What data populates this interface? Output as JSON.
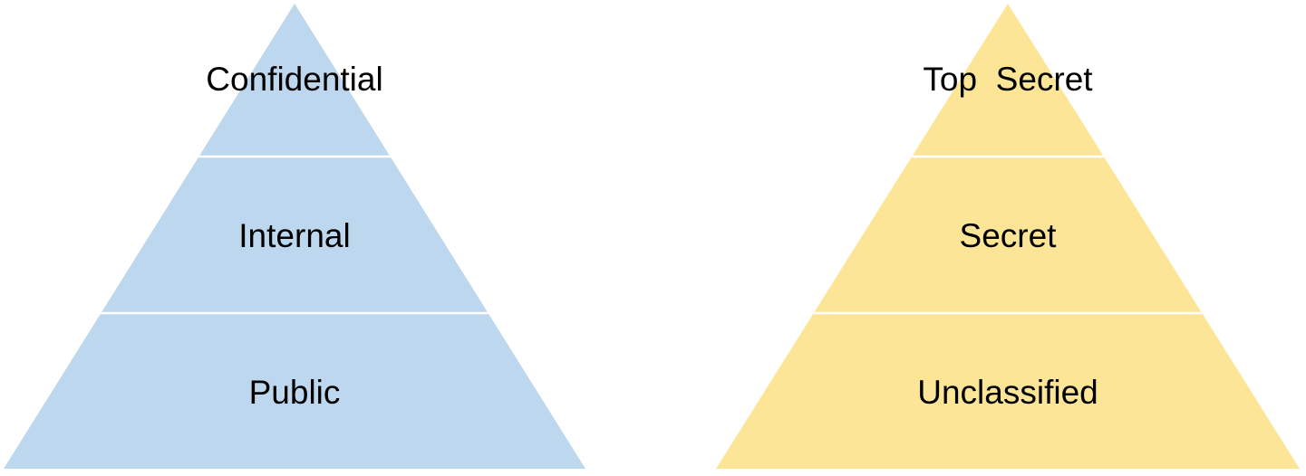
{
  "pyramids": [
    {
      "color": "#bdd7ee",
      "tiers": [
        {
          "label": "Confidential"
        },
        {
          "label": "Internal"
        },
        {
          "label": "Public"
        }
      ]
    },
    {
      "color": "#fde598",
      "tiers": [
        {
          "label": "Top  Secret"
        },
        {
          "label": "Secret"
        },
        {
          "label": "Unclassified"
        }
      ]
    }
  ]
}
